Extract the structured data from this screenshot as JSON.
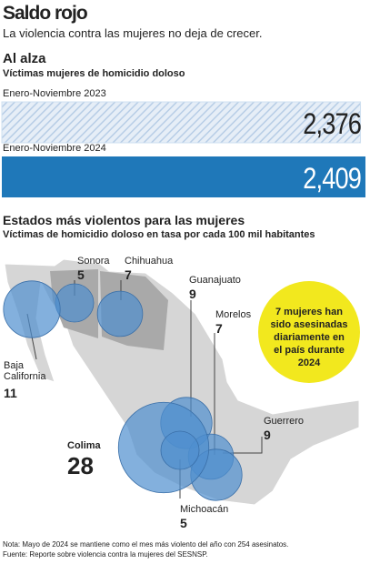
{
  "header": {
    "title": "Saldo rojo",
    "subtitle": "La violencia contra las mujeres no deja de crecer."
  },
  "chart_data": [
    {
      "type": "bar",
      "title": "Al alza",
      "subtitle": "Víctimas mujeres de homicidio doloso",
      "categories": [
        "Enero-Noviembre 2023",
        "Enero-Noviembre 2024"
      ],
      "values": [
        2376,
        2409
      ],
      "value_labels": [
        "2,376",
        "2,409"
      ],
      "colors": [
        "#cfe0f0",
        "#1f78b9"
      ]
    },
    {
      "type": "bubble",
      "title": "Estados más violentos para las mujeres",
      "subtitle": "Víctimas de homicidio doloso en tasa por cada 100 mil habitantes",
      "categories": [
        "Sonora",
        "Chihuahua",
        "Guanajuato",
        "Morelos",
        "Baja California",
        "Guerrero",
        "Colima",
        "Michoacán"
      ],
      "values": [
        5,
        7,
        9,
        7,
        11,
        9,
        28,
        5
      ],
      "color": "#4f8fcf",
      "annotation": "7 mujeres han sido asesinadas diariamente en el país durante 2024"
    }
  ],
  "notes": [
    "Nota: Mayo de 2024  se mantiene como el mes más violento del año con 254 asesinatos.",
    "Fuente: Reporte sobre violencia contra la mujeres del SESNSP."
  ]
}
